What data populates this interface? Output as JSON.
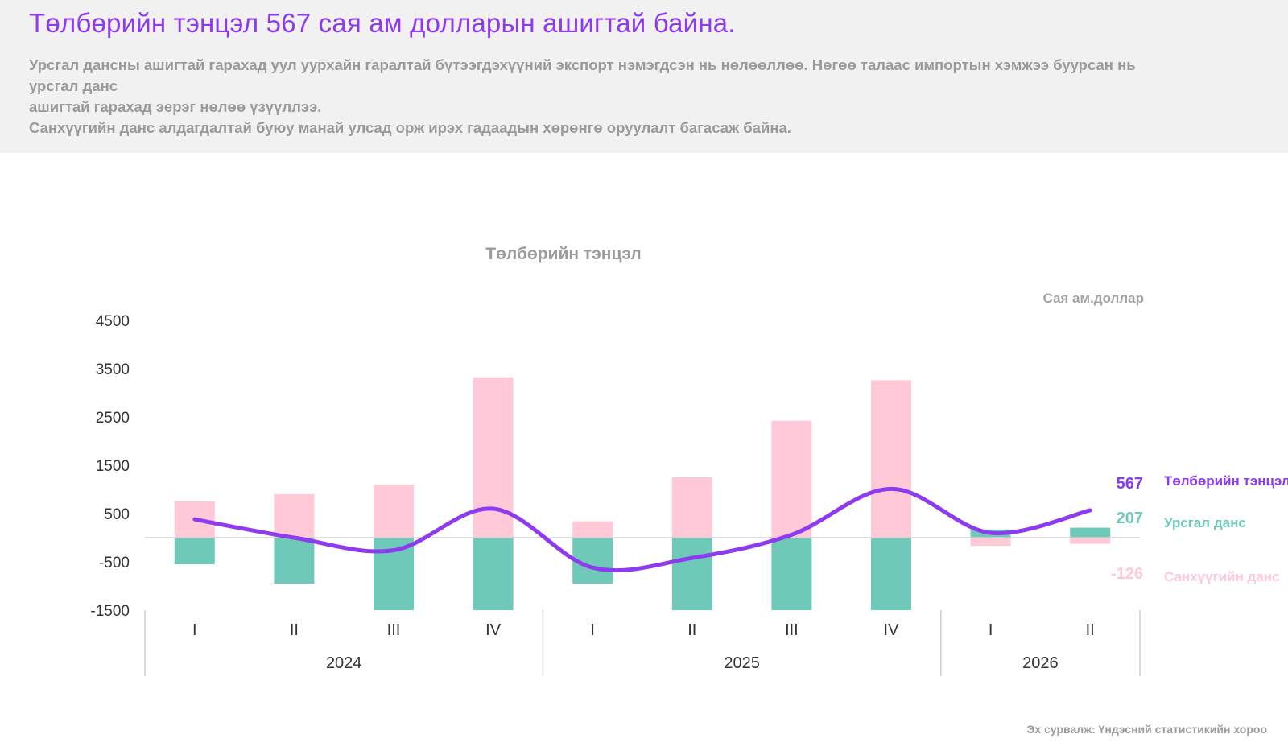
{
  "header": {
    "headline": "Төлбөрийн тэнцэл 567 сая ам долларын ашигтай байна.",
    "paragraph_lines": [
      "Урсгал дансны ашигтай гарахад уул уурхайн гаралтай бүтээгдэхүүний экспорт нэмэгдсэн нь нөлөөллөө. Нөгөө талаас импортын хэмжээ буурсан нь урсгал данс",
      "ашигтай гарахад эерэг нөлөө үзүүллээ.",
      "Санхүүгийн данс алдагдалтай буюу манай улсад орж ирэх гадаадын хөрөнгө оруулалт багасаж байна."
    ]
  },
  "footer": {
    "source": "Эх сурвалж: Үндэсний статистикийн хороо"
  },
  "chart_data": {
    "type": "bar",
    "title": "Төлбөрийн тэнцэл",
    "unit": "Сая ам.доллар",
    "ylim": [
      -1500,
      4500
    ],
    "yticks": [
      4500,
      3500,
      2500,
      1500,
      500,
      -500,
      -1500
    ],
    "categories": [
      "I",
      "II",
      "III",
      "IV",
      "I",
      "II",
      "III",
      "IV",
      "I",
      "II"
    ],
    "year_groups": [
      {
        "label": "2024",
        "count": 4
      },
      {
        "label": "2025",
        "count": 4
      },
      {
        "label": "2026",
        "count": 2
      }
    ],
    "series": [
      {
        "name": "Санхүүгийн данс",
        "kind": "bar",
        "color": "#ffc9d7",
        "values": [
          750,
          900,
          1100,
          3320,
          340,
          1250,
          2420,
          3260,
          -170,
          -126
        ],
        "end_label": "-126"
      },
      {
        "name": "Урсгал данс",
        "kind": "bar",
        "color": "#6fc9b9",
        "values": [
          -550,
          -950,
          -1500,
          -1500,
          -950,
          -1500,
          -1500,
          -1500,
          170,
          207
        ],
        "end_label": "207"
      },
      {
        "name": "Төлбөрийн тэнцэл",
        "kind": "line",
        "color": "#8e3bef",
        "values": [
          380,
          0,
          -260,
          600,
          -620,
          -420,
          60,
          1010,
          100,
          567
        ],
        "end_label": "567"
      }
    ]
  }
}
